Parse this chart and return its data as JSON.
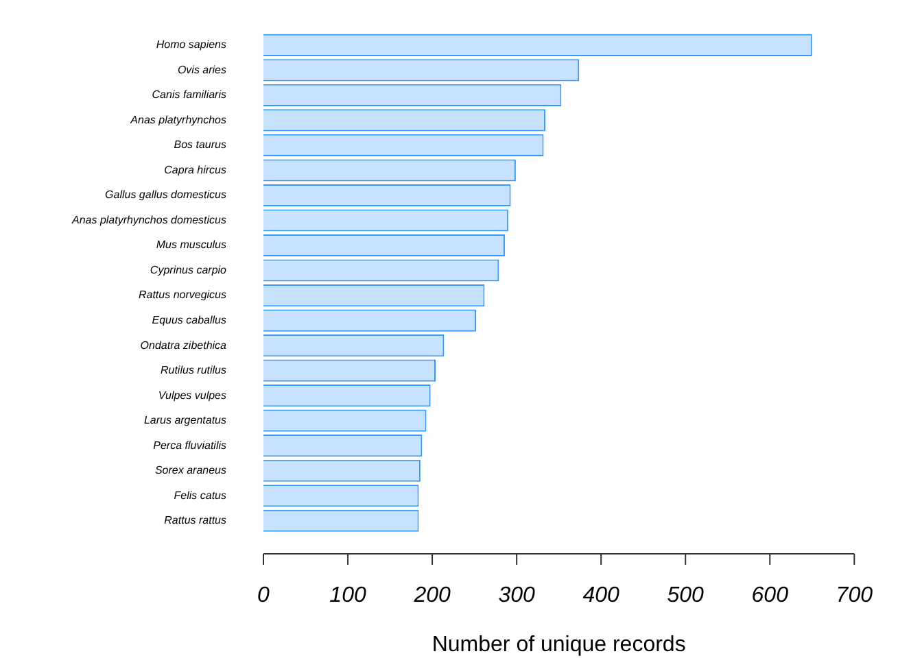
{
  "chart_data": {
    "type": "bar",
    "orientation": "horizontal",
    "xlabel": "Number of unique records",
    "categories": [
      "Homo sapiens",
      "Ovis aries",
      "Canis familiaris",
      "Anas platyrhynchos",
      "Bos taurus",
      "Capra hircus",
      "Gallus gallus domesticus",
      "Anas platyrhynchos domesticus",
      "Mus musculus",
      "Cyprinus carpio",
      "Rattus norvegicus",
      "Equus caballus",
      "Ondatra zibethica",
      "Rutilus rutilus",
      "Vulpes vulpes",
      "Larus argentatus",
      "Perca fluviatilis",
      "Sorex araneus",
      "Felis catus",
      "Rattus rattus"
    ],
    "values": [
      650,
      374,
      353,
      334,
      332,
      299,
      293,
      290,
      286,
      279,
      262,
      252,
      214,
      204,
      198,
      193,
      188,
      186,
      184,
      184
    ],
    "color": "#c6e2ff",
    "xlim": [
      0,
      700
    ],
    "xticks": [
      0,
      100,
      200,
      300,
      400,
      500,
      600,
      700
    ],
    "grid": false,
    "legend": false
  }
}
